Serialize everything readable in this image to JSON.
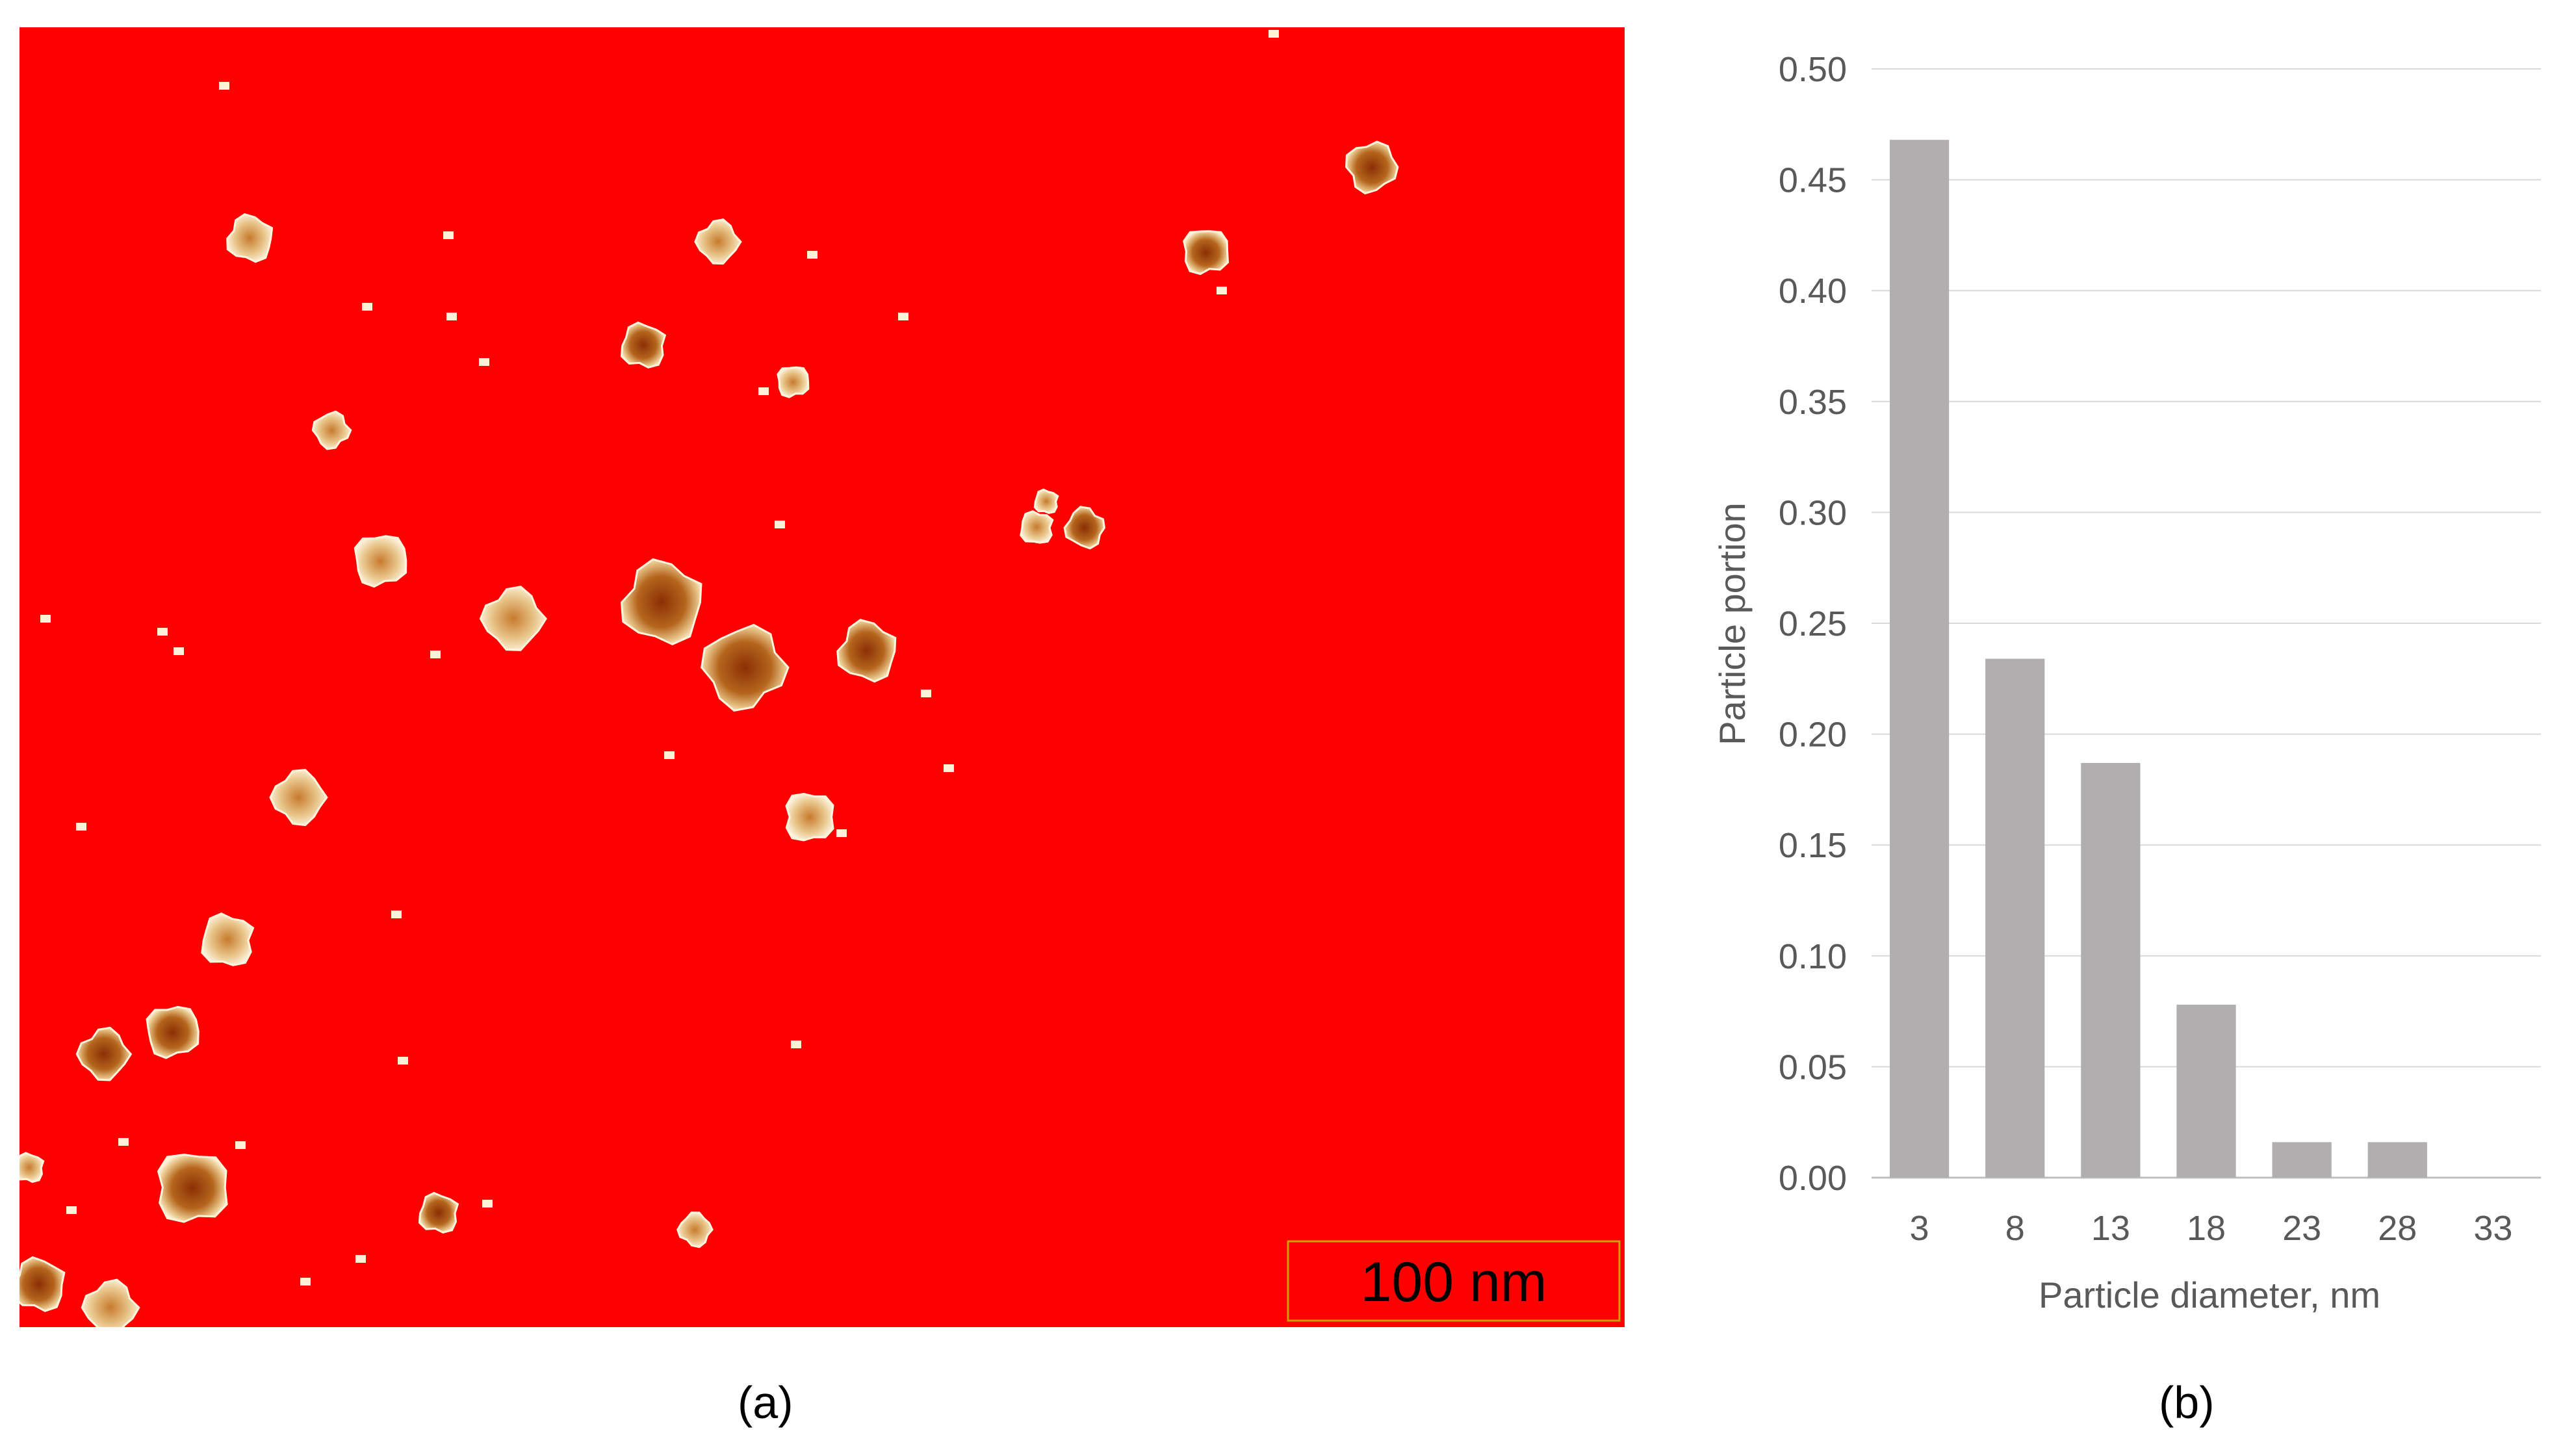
{
  "panels": {
    "a": {
      "caption": "(a)",
      "scale_bar": {
        "label": "100 nm"
      },
      "colors": {
        "background": "#ff0000",
        "particle_dark": "#8b2f05",
        "particle_mid": "#b5651d",
        "particle_light": "#e8c58a",
        "particle_edge": "#fff4dc",
        "scale_frame": "#c8a000"
      }
    },
    "b": {
      "caption": "(b)"
    }
  },
  "chart_data": {
    "type": "bar",
    "categories": [
      "3",
      "8",
      "13",
      "18",
      "23",
      "28",
      "33"
    ],
    "values": [
      0.468,
      0.234,
      0.187,
      0.078,
      0.016,
      0.016,
      0
    ],
    "xlabel": "Particle diameter, nm",
    "ylabel": "Particle portion",
    "ylim": [
      0,
      0.5
    ],
    "yticks": [
      "0.00",
      "0.05",
      "0.10",
      "0.15",
      "0.20",
      "0.25",
      "0.30",
      "0.35",
      "0.40",
      "0.45",
      "0.50"
    ],
    "grid": true,
    "bar_color": "#b0aeae",
    "grid_color": "#d9d9d9",
    "text_color": "#595959"
  }
}
